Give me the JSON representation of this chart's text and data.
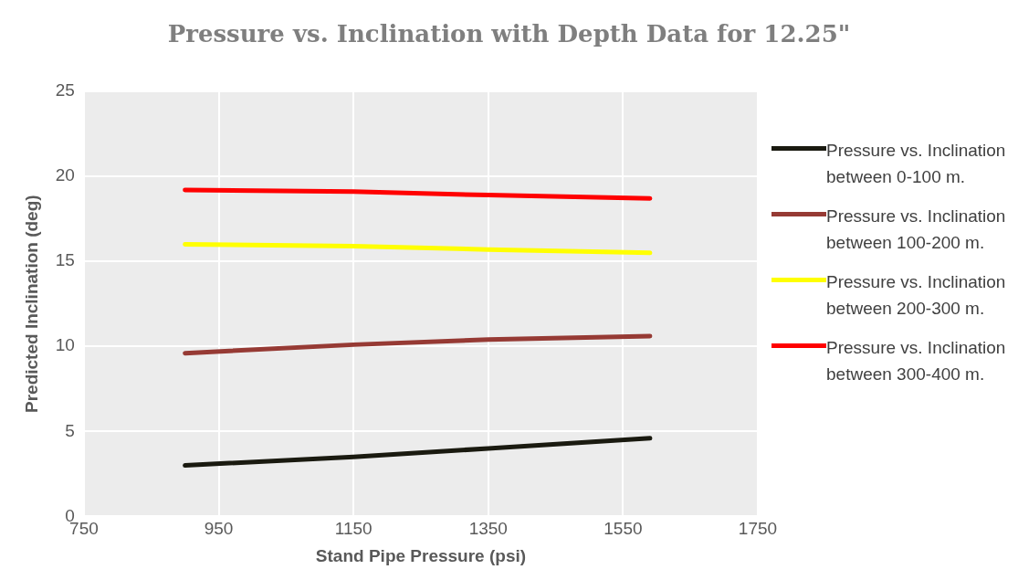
{
  "chart_data": {
    "type": "line",
    "title": "Pressure vs. Inclination with Depth Data for 12.25\"",
    "xlabel": "Stand Pipe Pressure (psi)",
    "ylabel": "Predicted Inclination (deg)",
    "xlim": [
      750,
      1750
    ],
    "xticks": [
      750,
      950,
      1150,
      1350,
      1550,
      1750
    ],
    "ylim": [
      0,
      25
    ],
    "yticks": [
      0,
      5,
      10,
      15,
      20,
      25
    ],
    "grid": true,
    "legend": "right",
    "marker": "none",
    "line_style": "solid",
    "series": [
      {
        "name": "Pressure vs. Inclination between 0-100 m.",
        "color": "#1a1a10",
        "x": [
          900,
          1150,
          1350,
          1590
        ],
        "values": [
          3.0,
          3.5,
          4.0,
          4.6
        ]
      },
      {
        "name": "Pressure vs. Inclination between 100-200 m.",
        "color": "#963a34",
        "x": [
          900,
          1150,
          1350,
          1590
        ],
        "values": [
          9.6,
          10.1,
          10.4,
          10.6
        ]
      },
      {
        "name": "Pressure vs. Inclination between 200-300 m.",
        "color": "#ffff00",
        "x": [
          900,
          1150,
          1350,
          1590
        ],
        "values": [
          16.0,
          15.9,
          15.7,
          15.5
        ]
      },
      {
        "name": "Pressure vs. Inclination between 300-400 m.",
        "color": "#ff0000",
        "x": [
          900,
          1150,
          1350,
          1590
        ],
        "values": [
          19.2,
          19.1,
          18.9,
          18.7
        ]
      }
    ]
  }
}
